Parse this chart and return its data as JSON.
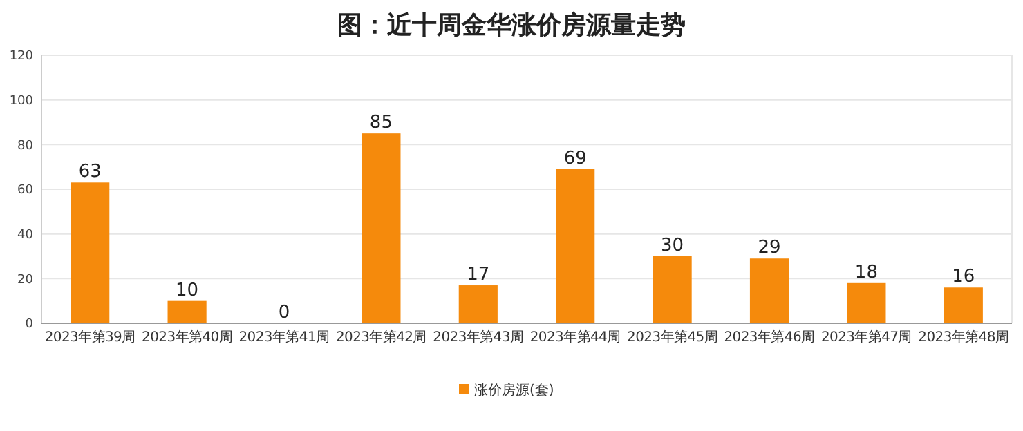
{
  "chart_data": {
    "type": "bar",
    "title": "图：近十周金华涨价房源量走势",
    "categories": [
      "2023年第39周",
      "2023年第40周",
      "2023年第41周",
      "2023年第42周",
      "2023年第43周",
      "2023年第44周",
      "2023年第45周",
      "2023年第46周",
      "2023年第47周",
      "2023年第48周"
    ],
    "series": [
      {
        "name": "涨价房源(套)",
        "color": "#f58a0c",
        "values": [
          63,
          10,
          0,
          85,
          17,
          69,
          30,
          29,
          18,
          16
        ]
      }
    ],
    "ylim": [
      0,
      120
    ],
    "yticks": [
      0,
      20,
      40,
      60,
      80,
      100,
      120
    ],
    "grid": "y",
    "legend": "bottom",
    "data_labels": true
  }
}
